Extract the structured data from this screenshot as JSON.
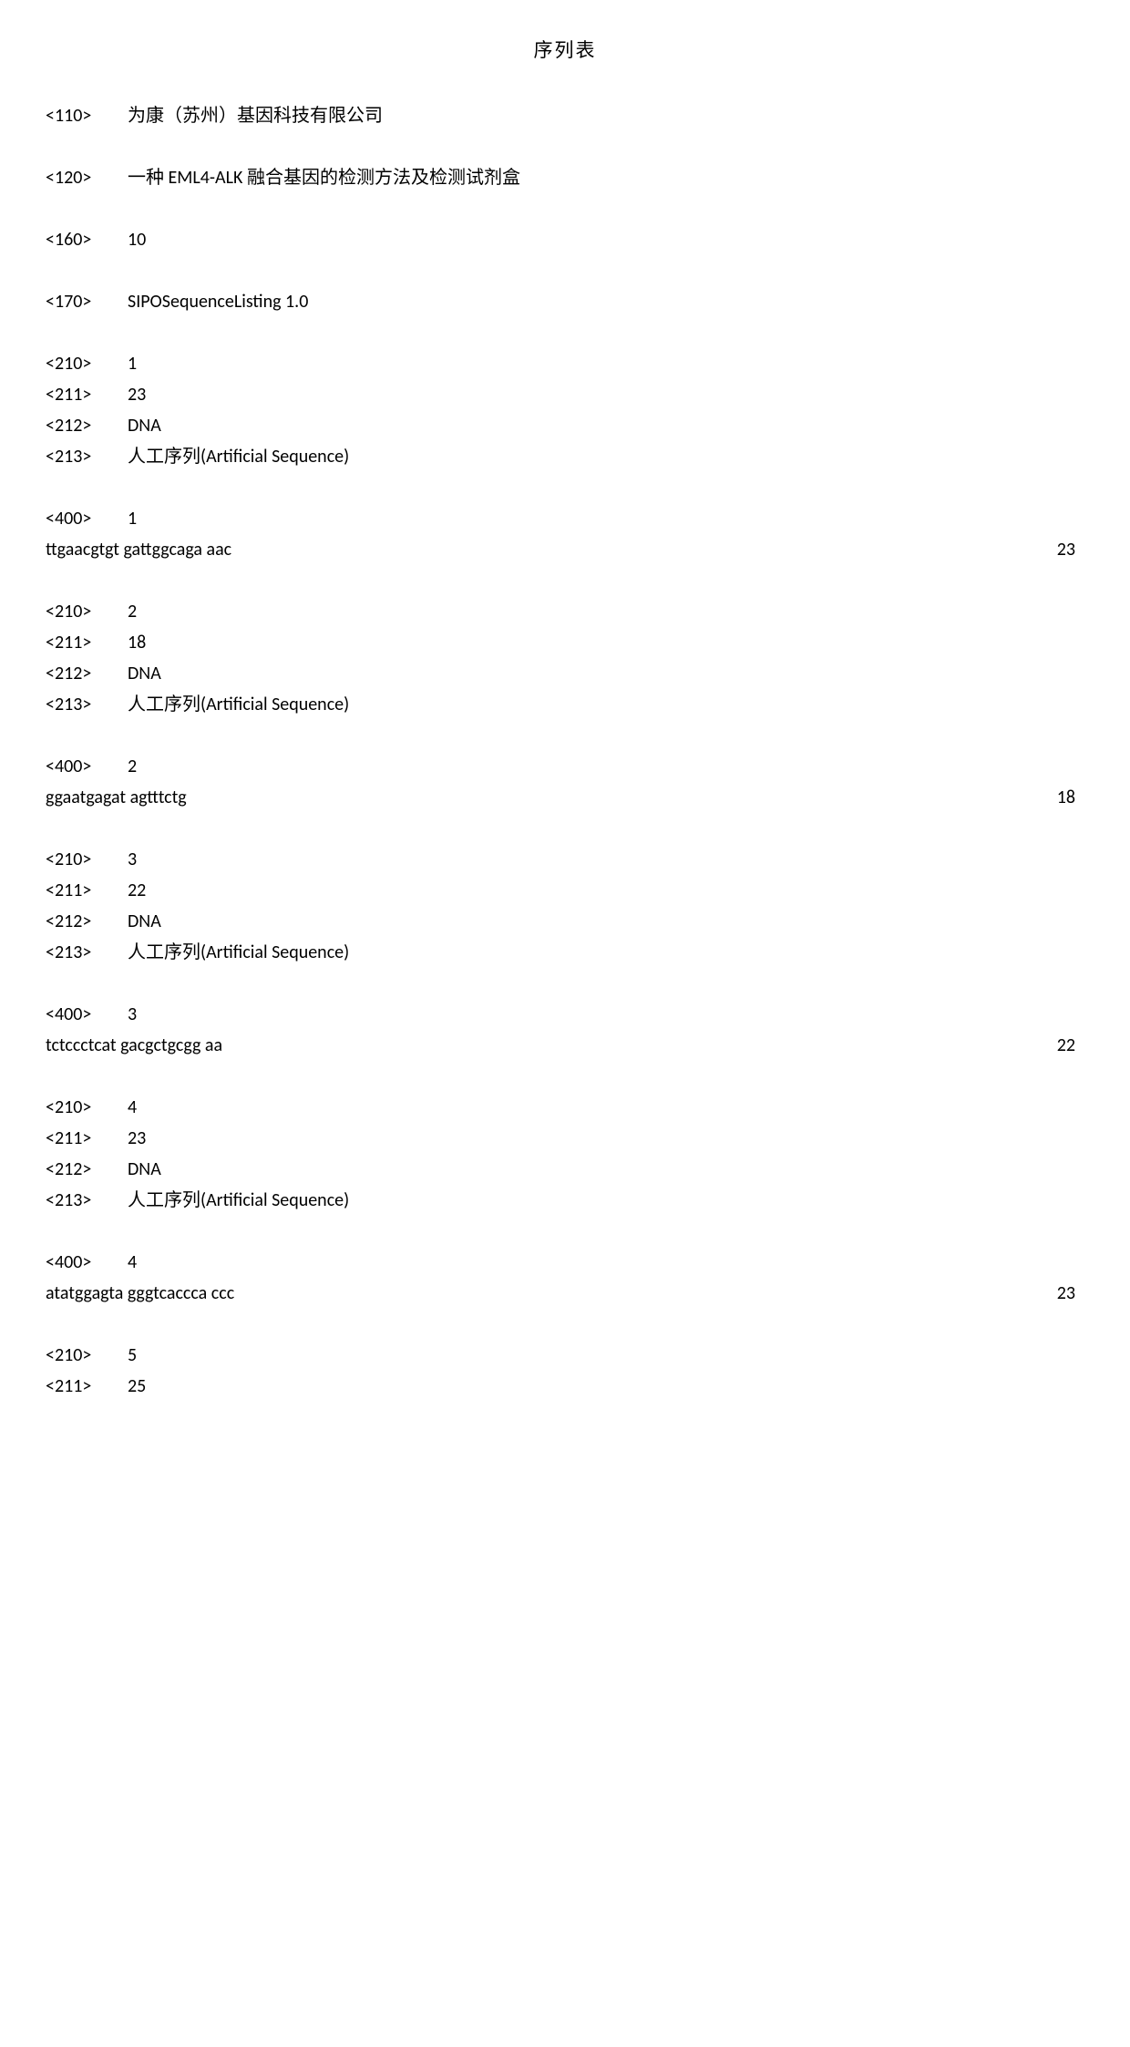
{
  "title": "序列表",
  "header": [
    {
      "tag": "<110>",
      "value": "为康（苏州）基因科技有限公司"
    },
    {
      "tag": "<120>",
      "value": "一种 EML4-ALK 融合基因的检测方法及检测试剂盒"
    },
    {
      "tag": "<160>",
      "value": "10"
    },
    {
      "tag": "<170>",
      "value": "SIPOSequenceListing 1.0"
    }
  ],
  "sequences": [
    {
      "meta": [
        {
          "tag": "<210>",
          "value": "1"
        },
        {
          "tag": "<211>",
          "value": "23"
        },
        {
          "tag": "<212>",
          "value": "DNA"
        },
        {
          "tag": "<213>",
          "value": "人工序列(Artificial Sequence)"
        }
      ],
      "data_tag": "<400>",
      "data_idx": "1",
      "seq": "ttgaacgtgt gattggcaga aac",
      "len": "23"
    },
    {
      "meta": [
        {
          "tag": "<210>",
          "value": "2"
        },
        {
          "tag": "<211>",
          "value": "18"
        },
        {
          "tag": "<212>",
          "value": "DNA"
        },
        {
          "tag": "<213>",
          "value": "人工序列(Artificial Sequence)"
        }
      ],
      "data_tag": "<400>",
      "data_idx": "2",
      "seq": "ggaatgagat agtttctg",
      "len": "18"
    },
    {
      "meta": [
        {
          "tag": "<210>",
          "value": "3"
        },
        {
          "tag": "<211>",
          "value": "22"
        },
        {
          "tag": "<212>",
          "value": "DNA"
        },
        {
          "tag": "<213>",
          "value": "人工序列(Artificial Sequence)"
        }
      ],
      "data_tag": "<400>",
      "data_idx": "3",
      "seq": "tctccctcat gacgctgcgg aa",
      "len": "22"
    },
    {
      "meta": [
        {
          "tag": "<210>",
          "value": "4"
        },
        {
          "tag": "<211>",
          "value": "23"
        },
        {
          "tag": "<212>",
          "value": "DNA"
        },
        {
          "tag": "<213>",
          "value": "人工序列(Artificial Sequence)"
        }
      ],
      "data_tag": "<400>",
      "data_idx": "4",
      "seq": "atatggagta gggtcaccca ccc",
      "len": "23"
    }
  ],
  "trailing": [
    {
      "tag": "<210>",
      "value": "5"
    },
    {
      "tag": "<211>",
      "value": "25"
    }
  ]
}
